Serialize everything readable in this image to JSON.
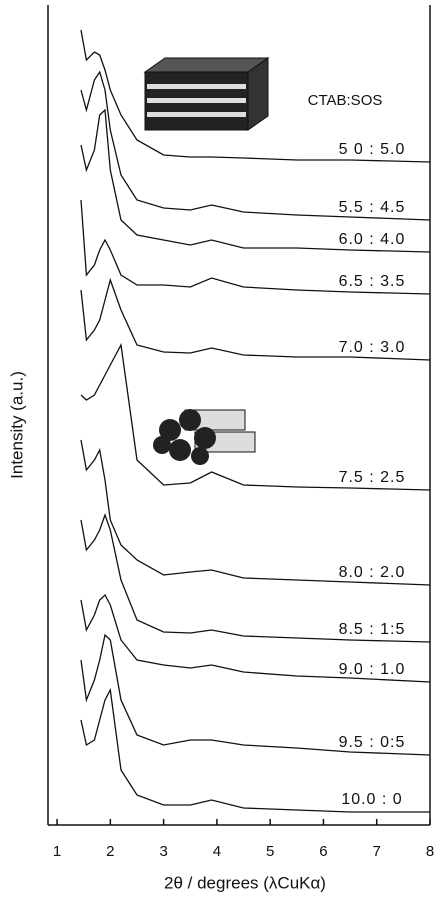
{
  "chart_data": {
    "type": "line",
    "y_label": "Intensity (a.u.)",
    "x_label": "2θ  /  degrees  (λCuKα)",
    "annotation": "CTAB:SOS",
    "xlim": [
      0.83,
      8
    ],
    "xticks": [
      1,
      2,
      3,
      4,
      5,
      6,
      7,
      8
    ],
    "ylim": [
      0,
      820
    ],
    "x": [
      1.45,
      1.55,
      1.7,
      1.8,
      1.9,
      2.0,
      2.2,
      2.5,
      3.0,
      3.5,
      3.9,
      4.5,
      5.5,
      6.5,
      8.0
    ],
    "series": [
      {
        "name": "5 0 : 5.0",
        "color": "#111",
        "values": [
          795,
          765,
          773,
          770,
          755,
          735,
          710,
          685,
          670,
          668,
          668,
          667,
          665,
          665,
          663
        ]
      },
      {
        "name": "5.5 : 4.5",
        "color": "#111",
        "values": [
          735,
          715,
          745,
          753,
          735,
          695,
          650,
          625,
          617,
          615,
          620,
          613,
          610,
          608,
          605
        ]
      },
      {
        "name": "6.0 : 4.0",
        "color": "#111",
        "values": [
          680,
          655,
          675,
          710,
          715,
          655,
          605,
          590,
          585,
          580,
          585,
          577,
          577,
          575,
          573
        ]
      },
      {
        "name": "6.5 : 3.5",
        "color": "#111",
        "values": [
          625,
          550,
          560,
          575,
          585,
          575,
          550,
          540,
          540,
          538,
          547,
          538,
          535,
          533,
          531
        ]
      },
      {
        "name": "7.0 : 3.0",
        "color": "#111",
        "values": [
          535,
          485,
          495,
          505,
          525,
          545,
          515,
          480,
          473,
          472,
          477,
          470,
          468,
          468,
          465
        ]
      },
      {
        "name": "7.5 : 2.5",
        "color": "#111",
        "values": [
          430,
          425,
          430,
          440,
          450,
          460,
          480,
          365,
          340,
          342,
          353,
          340,
          338,
          337,
          335
        ]
      },
      {
        "name": "8.0 : 2.0",
        "color": "#111",
        "values": [
          385,
          355,
          365,
          375,
          345,
          305,
          280,
          265,
          250,
          253,
          255,
          247,
          245,
          243,
          240
        ]
      },
      {
        "name": "8.5 : 1:5",
        "color": "#111",
        "values": [
          305,
          275,
          285,
          295,
          310,
          295,
          245,
          205,
          193,
          192,
          195,
          189,
          187,
          185,
          183
        ]
      },
      {
        "name": "9.0 : 1.0",
        "color": "#111",
        "values": [
          225,
          195,
          210,
          225,
          230,
          220,
          185,
          165,
          160,
          157,
          160,
          153,
          149,
          147,
          143
        ]
      },
      {
        "name": "9.5 : 0:5",
        "color": "#111",
        "values": [
          165,
          125,
          145,
          165,
          190,
          185,
          125,
          90,
          80,
          85,
          85,
          80,
          77,
          73,
          70
        ]
      },
      {
        "name": "10.0 : 0",
        "color": "#111",
        "values": [
          105,
          80,
          85,
          105,
          125,
          135,
          55,
          30,
          20,
          20,
          25,
          17,
          15,
          13,
          13
        ]
      }
    ]
  }
}
